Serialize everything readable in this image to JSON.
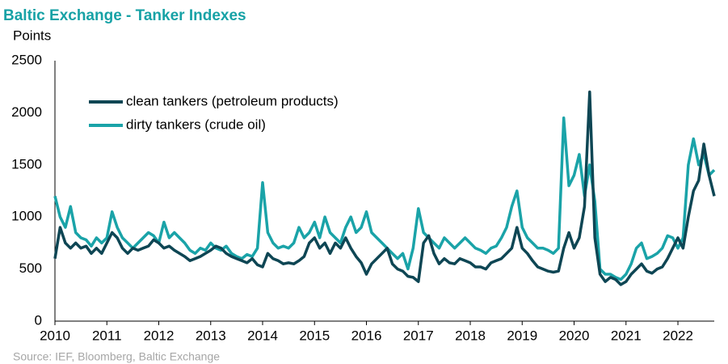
{
  "chart_data": {
    "type": "line",
    "title": "Baltic Exchange - Tanker Indexes",
    "subtitle": "Points",
    "source": "Source: IEF, Bloomberg, Baltic Exchange",
    "x": [
      2010,
      2010.1,
      2010.2,
      2010.3,
      2010.4,
      2010.5,
      2010.6,
      2010.7,
      2010.8,
      2010.9,
      2011,
      2011.1,
      2011.2,
      2011.3,
      2011.4,
      2011.5,
      2011.6,
      2011.7,
      2011.8,
      2011.9,
      2012,
      2012.1,
      2012.2,
      2012.3,
      2012.4,
      2012.5,
      2012.6,
      2012.7,
      2012.8,
      2012.9,
      2013,
      2013.1,
      2013.2,
      2013.3,
      2013.4,
      2013.5,
      2013.6,
      2013.7,
      2013.8,
      2013.9,
      2014,
      2014.1,
      2014.2,
      2014.3,
      2014.4,
      2014.5,
      2014.6,
      2014.7,
      2014.8,
      2014.9,
      2015,
      2015.1,
      2015.2,
      2015.3,
      2015.4,
      2015.5,
      2015.6,
      2015.7,
      2015.8,
      2015.9,
      2016,
      2016.1,
      2016.2,
      2016.3,
      2016.4,
      2016.5,
      2016.6,
      2016.7,
      2016.8,
      2016.9,
      2017,
      2017.1,
      2017.2,
      2017.3,
      2017.4,
      2017.5,
      2017.6,
      2017.7,
      2017.8,
      2017.9,
      2018,
      2018.1,
      2018.2,
      2018.3,
      2018.4,
      2018.5,
      2018.6,
      2018.7,
      2018.8,
      2018.9,
      2019,
      2019.1,
      2019.2,
      2019.3,
      2019.4,
      2019.5,
      2019.6,
      2019.7,
      2019.8,
      2019.9,
      2020,
      2020.1,
      2020.2,
      2020.3,
      2020.4,
      2020.5,
      2020.6,
      2020.7,
      2020.8,
      2020.9,
      2021,
      2021.1,
      2021.2,
      2021.3,
      2021.4,
      2021.5,
      2021.6,
      2021.7,
      2021.8,
      2021.9,
      2022,
      2022.1,
      2022.2,
      2022.3,
      2022.4,
      2022.5,
      2022.6,
      2022.7
    ],
    "series": [
      {
        "name": "clean tankers (petroleum products)",
        "color": "#0e4654",
        "values": [
          600,
          900,
          750,
          700,
          750,
          700,
          720,
          650,
          700,
          650,
          750,
          850,
          800,
          700,
          650,
          700,
          680,
          700,
          720,
          780,
          750,
          700,
          720,
          680,
          650,
          620,
          580,
          600,
          620,
          650,
          680,
          720,
          700,
          650,
          620,
          600,
          580,
          560,
          600,
          540,
          520,
          650,
          600,
          580,
          550,
          560,
          550,
          580,
          620,
          750,
          800,
          700,
          750,
          650,
          750,
          700,
          800,
          700,
          620,
          560,
          450,
          550,
          600,
          650,
          700,
          550,
          500,
          480,
          430,
          420,
          380,
          750,
          820,
          650,
          550,
          600,
          560,
          550,
          600,
          580,
          560,
          520,
          520,
          500,
          560,
          580,
          600,
          650,
          700,
          900,
          700,
          650,
          580,
          520,
          500,
          480,
          470,
          480,
          700,
          850,
          700,
          800,
          1100,
          2200,
          800,
          450,
          380,
          420,
          400,
          350,
          380,
          450,
          500,
          550,
          480,
          460,
          500,
          520,
          600,
          700,
          800,
          700,
          1000,
          1250,
          1350,
          1700,
          1400,
          1200
        ]
      },
      {
        "name": "dirty tankers (crude oil)",
        "color": "#1aa3a8",
        "values": [
          1200,
          1000,
          900,
          1100,
          850,
          800,
          780,
          720,
          800,
          750,
          800,
          1050,
          900,
          800,
          750,
          700,
          750,
          800,
          850,
          820,
          750,
          950,
          800,
          850,
          800,
          750,
          680,
          650,
          700,
          680,
          750,
          700,
          680,
          720,
          650,
          620,
          600,
          640,
          620,
          700,
          1330,
          850,
          750,
          700,
          720,
          700,
          750,
          900,
          800,
          850,
          950,
          800,
          1000,
          850,
          800,
          750,
          900,
          1000,
          850,
          900,
          1050,
          850,
          800,
          750,
          700,
          650,
          600,
          650,
          500,
          700,
          1080,
          850,
          800,
          750,
          700,
          800,
          750,
          700,
          750,
          800,
          750,
          700,
          680,
          650,
          700,
          720,
          800,
          900,
          1100,
          1250,
          900,
          800,
          750,
          700,
          700,
          680,
          650,
          700,
          1950,
          1300,
          1400,
          1600,
          1200,
          1500,
          1150,
          500,
          450,
          450,
          420,
          400,
          450,
          550,
          700,
          750,
          600,
          620,
          650,
          700,
          820,
          800,
          700,
          800,
          1500,
          1750,
          1500,
          1600,
          1400,
          1450
        ]
      }
    ],
    "xlim": [
      2010,
      2022.7
    ],
    "xticks": [
      2010,
      2011,
      2012,
      2013,
      2014,
      2015,
      2016,
      2017,
      2018,
      2019,
      2020,
      2021,
      2022
    ],
    "ylim": [
      0,
      2500
    ],
    "yticks": [
      0,
      500,
      1000,
      1500,
      2000,
      2500
    ]
  }
}
